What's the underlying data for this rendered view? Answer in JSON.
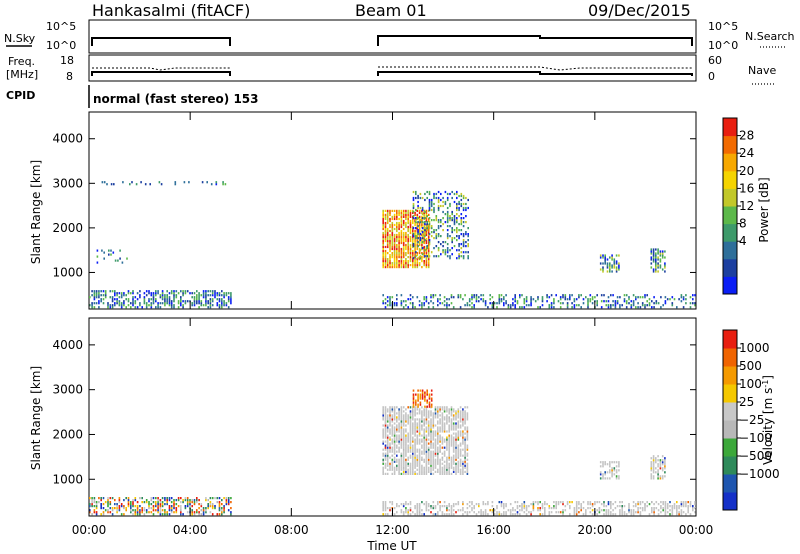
{
  "header": {
    "station": "Hankasalmi (fitACF)",
    "beam": "Beam 01",
    "date": "09/Dec/2015"
  },
  "top_panels": {
    "nsky": {
      "label": "N.Sky",
      "ticks": [
        "10^5",
        "10^0"
      ],
      "right_label": "N.Search",
      "right_ticks": [
        "10^5",
        "10^0"
      ]
    },
    "freq": {
      "label_line1": "Freq.",
      "label_line2": "[MHz]",
      "ticks": [
        "18",
        "8"
      ],
      "right_label": "Nave",
      "right_ticks": [
        "60",
        "0"
      ]
    },
    "cpid": {
      "label": "CPID",
      "value": "normal (fast stereo) 153"
    }
  },
  "colorbars": {
    "power": {
      "title": "Power [dB]",
      "ticks": [
        "28",
        "24",
        "20",
        "16",
        "12",
        "8",
        "4"
      ],
      "colors": [
        "#0a1ef5",
        "#1c3fa0",
        "#2e6f9a",
        "#3d9a6a",
        "#5cb84a",
        "#c2c82a",
        "#f5d400",
        "#f7a800",
        "#f26a00",
        "#e81e10"
      ]
    },
    "velocity": {
      "title": "Velocity [m s",
      "title_sup": "-1",
      "title_close": "]",
      "ticks": [
        "1000",
        "500",
        "100",
        "25",
        "−25",
        "−100",
        "−500",
        "−1000"
      ],
      "colors": [
        "#1430c8",
        "#1e56b0",
        "#2e8a5a",
        "#3ca83a",
        "#b8b8b8",
        "#c8c8c8",
        "#f5c800",
        "#f59a00",
        "#f06400",
        "#e81e10"
      ]
    }
  },
  "chart_data": [
    {
      "type": "heatmap",
      "panel": "power",
      "ylabel": "Slant Range [km]",
      "yticks": [
        1000,
        2000,
        3000,
        4000
      ],
      "ylim": [
        180,
        4600
      ],
      "xlim": [
        0,
        24
      ],
      "xlabel": "",
      "colorbar": "Power [dB]",
      "regions": [
        {
          "t0": 0.0,
          "t1": 5.6,
          "r0": 200,
          "r1": 600,
          "level": "low",
          "density": 0.55
        },
        {
          "t0": 0.3,
          "t1": 1.5,
          "r0": 1200,
          "r1": 1500,
          "level": "low",
          "density": 0.2
        },
        {
          "t0": 11.6,
          "t1": 13.4,
          "r0": 1100,
          "r1": 2400,
          "level": "high",
          "density": 0.85
        },
        {
          "t0": 12.8,
          "t1": 15.0,
          "r0": 1300,
          "r1": 2800,
          "level": "mid",
          "density": 0.4
        },
        {
          "t0": 11.6,
          "t1": 24.0,
          "r0": 200,
          "r1": 500,
          "level": "low",
          "density": 0.35
        },
        {
          "t0": 20.2,
          "t1": 21.0,
          "r0": 1000,
          "r1": 1400,
          "level": "mid",
          "density": 0.6
        },
        {
          "t0": 22.2,
          "t1": 22.8,
          "r0": 1000,
          "r1": 1500,
          "level": "mid",
          "density": 0.7
        },
        {
          "t0": 0.5,
          "t1": 5.5,
          "r0": 2960,
          "r1": 3040,
          "level": "low",
          "density": 0.2
        }
      ]
    },
    {
      "type": "heatmap",
      "panel": "velocity",
      "ylabel": "Slant Range [km]",
      "yticks": [
        1000,
        2000,
        3000,
        4000
      ],
      "ylim": [
        180,
        4600
      ],
      "xlim": [
        0,
        24
      ],
      "xlabel": "Time UT",
      "xticks": [
        "00:00",
        "04:00",
        "08:00",
        "12:00",
        "16:00",
        "20:00",
        "00:00"
      ],
      "colorbar": "Velocity [m s-1]",
      "regions": [
        {
          "t0": 0.0,
          "t1": 5.6,
          "r0": 200,
          "r1": 600,
          "level": "mixed",
          "density": 0.55
        },
        {
          "t0": 11.6,
          "t1": 15.0,
          "r0": 1100,
          "r1": 2600,
          "level": "gray",
          "density": 0.8
        },
        {
          "t0": 12.8,
          "t1": 13.6,
          "r0": 2600,
          "r1": 3000,
          "level": "neg",
          "density": 0.6
        },
        {
          "t0": 11.6,
          "t1": 24.0,
          "r0": 200,
          "r1": 500,
          "level": "gray",
          "density": 0.5
        },
        {
          "t0": 20.2,
          "t1": 21.0,
          "r0": 1000,
          "r1": 1400,
          "level": "gray",
          "density": 0.6
        },
        {
          "t0": 22.2,
          "t1": 22.8,
          "r0": 1000,
          "r1": 1500,
          "level": "gray",
          "density": 0.7
        }
      ]
    }
  ]
}
